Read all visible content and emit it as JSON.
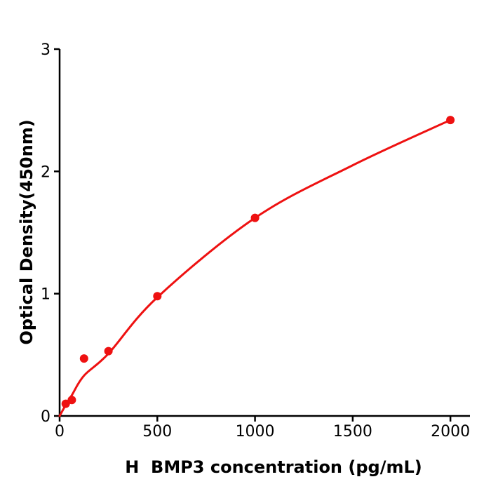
{
  "page": {
    "background": "#ffffff"
  },
  "chart_data": {
    "type": "scatter",
    "title": "",
    "xlabel": "H  BMP3 concentration (pg/mL)",
    "ylabel": "Optical Density(450nm)",
    "series": [
      {
        "name": "BMP3 standard points",
        "marker": "circle",
        "color": "#ee1111",
        "x": [
          31.25,
          62.5,
          125,
          250,
          500,
          1000,
          2000
        ],
        "y": [
          0.1,
          0.13,
          0.47,
          0.53,
          0.98,
          1.62,
          2.42
        ]
      }
    ],
    "trend_curve": {
      "name": "fitted standard curve",
      "color": "#ee1111",
      "x": [
        0,
        31.25,
        62.5,
        125,
        250,
        500,
        1000,
        1500,
        2000
      ],
      "y": [
        0,
        0.09,
        0.17,
        0.33,
        0.51,
        0.97,
        1.62,
        2.05,
        2.42
      ]
    },
    "xlim": [
      0,
      2100
    ],
    "ylim": [
      0,
      3
    ],
    "x_ticks": [
      0,
      500,
      1000,
      1500,
      2000
    ],
    "y_ticks": [
      0,
      1,
      2,
      3
    ],
    "grid": false,
    "legend_position": "none",
    "axis_color": "#000000",
    "text_color": "#000000"
  }
}
